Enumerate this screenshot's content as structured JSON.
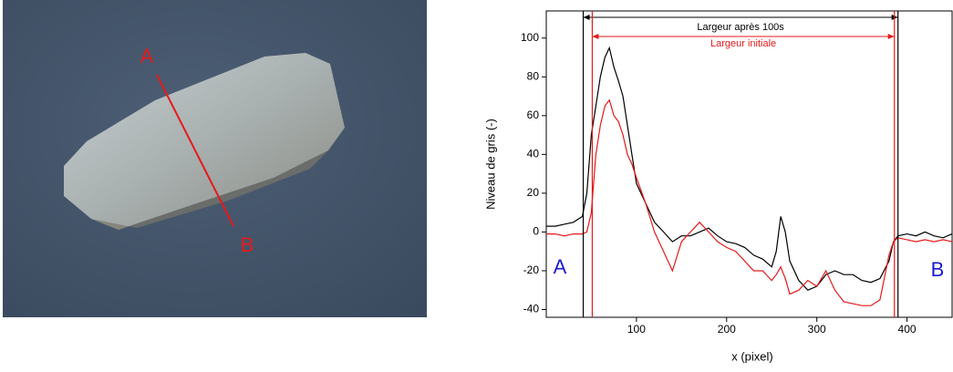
{
  "image": {
    "labels": [
      "A",
      "B"
    ],
    "line_color": "#e8191a"
  },
  "chart_data": {
    "type": "line",
    "xlabel": "x (pixel)",
    "ylabel": "Niveau de gris (-)",
    "xlim": [
      0,
      451
    ],
    "xticks": [
      100,
      200,
      300,
      400
    ],
    "ylim": [
      -44,
      114
    ],
    "yticks": [
      -40,
      -20,
      0,
      20,
      40,
      60,
      80,
      100
    ],
    "x": [
      0,
      10,
      20,
      30,
      40,
      45,
      50,
      55,
      60,
      65,
      70,
      75,
      80,
      85,
      90,
      95,
      100,
      110,
      120,
      130,
      140,
      150,
      160,
      170,
      180,
      190,
      200,
      210,
      220,
      230,
      240,
      250,
      255,
      260,
      265,
      270,
      280,
      290,
      300,
      310,
      320,
      330,
      340,
      350,
      360,
      370,
      380,
      385,
      390,
      400,
      410,
      420,
      430,
      440,
      450
    ],
    "series": [
      {
        "color": "#000000",
        "values": [
          3,
          3,
          4,
          5,
          8,
          20,
          50,
          65,
          80,
          90,
          95,
          85,
          78,
          70,
          55,
          40,
          25,
          15,
          5,
          0,
          -5,
          -2,
          -2,
          0,
          2,
          -2,
          -5,
          -6,
          -8,
          -12,
          -14,
          -18,
          -10,
          8,
          0,
          -15,
          -25,
          -30,
          -28,
          -22,
          -20,
          -22,
          -22,
          -25,
          -26,
          -24,
          -15,
          -5,
          -2,
          -1,
          -2,
          0,
          -2,
          -3,
          -1
        ]
      },
      {
        "color": "#e8191a",
        "values": [
          -1,
          -1,
          -2,
          -1,
          -1,
          0,
          10,
          40,
          55,
          65,
          68,
          60,
          57,
          50,
          40,
          35,
          28,
          15,
          0,
          -10,
          -20,
          -5,
          0,
          5,
          0,
          -5,
          -8,
          -10,
          -15,
          -20,
          -20,
          -25,
          -22,
          -18,
          -24,
          -32,
          -30,
          -25,
          -28,
          -20,
          -30,
          -36,
          -37,
          -38,
          -38,
          -35,
          -12,
          -5,
          -3,
          -4,
          -5,
          -4,
          -5,
          -4,
          -5
        ]
      }
    ],
    "width_arrows": [
      {
        "label": "Largeur après 100s",
        "from": 41,
        "to": 390,
        "color": "#000000"
      },
      {
        "label": "Largeur initiale",
        "from": 51,
        "to": 386,
        "color": "#e8191a"
      }
    ],
    "annotations": [
      {
        "text": "A",
        "color": "#1a1ad6"
      },
      {
        "text": "B",
        "color": "#1a1ad6"
      }
    ]
  }
}
